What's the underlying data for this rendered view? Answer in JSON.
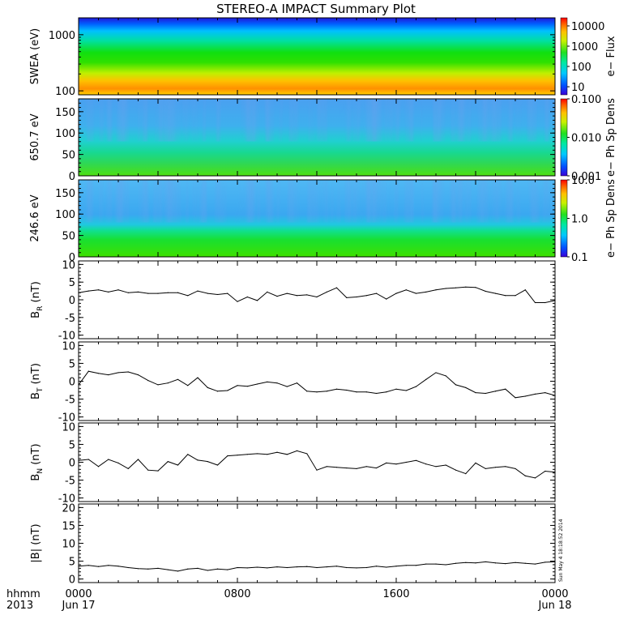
{
  "chart_data": {
    "type": "summary-plot",
    "title": "STEREO-A IMPACT Summary Plot",
    "x_axis": {
      "ticks": [
        "0000",
        "0800",
        "1600",
        "0000"
      ],
      "date_labels": [
        "Jun 17",
        "",
        "",
        "Jun 18"
      ],
      "unit_label": "hhmm",
      "year_label": "2013",
      "range_hours": [
        0,
        24
      ]
    },
    "timestamp": "Sun May  4 18:18:52 2014",
    "panels": [
      {
        "id": "swea",
        "type": "heatmap",
        "ylabel": "SWEA (eV)",
        "ylim": [
          85,
          2000
        ],
        "y_scale": "log",
        "y_ticks": [
          "100",
          "1000"
        ],
        "y_tick_values": [
          100,
          1000
        ],
        "colorbar": {
          "label": "e− Flux",
          "scale": "log",
          "ticks": [
            "10",
            "100",
            "1000",
            "10000"
          ],
          "tick_values": [
            10,
            100,
            1000,
            10000
          ],
          "range": [
            4,
            25000
          ]
        }
      },
      {
        "id": "pad650",
        "type": "heatmap",
        "ylabel": "650.7 eV",
        "ylim": [
          0,
          180
        ],
        "y_ticks": [
          "0",
          "50",
          "100",
          "150"
        ],
        "y_tick_values": [
          0,
          50,
          100,
          150
        ],
        "colorbar": {
          "label": "e− Ph Sp Dens",
          "scale": "log",
          "ticks": [
            "0.001",
            "0.010",
            "0.100"
          ],
          "tick_values": [
            0.001,
            0.01,
            0.1
          ],
          "range": [
            0.001,
            0.1
          ]
        }
      },
      {
        "id": "pad246",
        "type": "heatmap",
        "ylabel": "246.6 eV",
        "ylim": [
          0,
          180
        ],
        "y_ticks": [
          "0",
          "50",
          "100",
          "150"
        ],
        "y_tick_values": [
          0,
          50,
          100,
          150
        ],
        "colorbar": {
          "label": "e− Ph Sp Dens",
          "scale": "log",
          "ticks": [
            "0.1",
            "1.0",
            "10.0"
          ],
          "tick_values": [
            0.1,
            1.0,
            10.0
          ],
          "range": [
            0.1,
            10
          ]
        }
      },
      {
        "id": "br",
        "type": "line",
        "ylabel_main": "B",
        "ylabel_sub": "R",
        "ylabel_unit": " (nT)",
        "ylim": [
          -11,
          11
        ],
        "y_ticks": [
          "-10",
          "-5",
          "0",
          "5",
          "10"
        ],
        "y_tick_values": [
          -10,
          -5,
          0,
          5,
          10
        ],
        "x_hours": [
          0,
          0.5,
          1,
          1.5,
          2,
          2.5,
          3,
          3.5,
          4,
          4.5,
          5,
          5.5,
          6,
          6.5,
          7,
          7.5,
          8,
          8.5,
          9,
          9.5,
          10,
          10.5,
          11,
          11.5,
          12,
          12.5,
          13,
          13.5,
          14,
          14.5,
          15,
          15.5,
          16,
          16.5,
          17,
          17.5,
          18,
          18.5,
          19,
          19.5,
          20,
          20.5,
          21,
          21.5,
          22,
          22.5,
          23,
          23.5,
          24
        ],
        "values": [
          2,
          2.5,
          2.8,
          2.2,
          2.8,
          2,
          2.2,
          1.8,
          1.8,
          2,
          2,
          1.2,
          2.5,
          1.8,
          1.5,
          1.8,
          -0.5,
          0.8,
          -0.2,
          2.2,
          1,
          1.8,
          1.2,
          1.4,
          0.8,
          2.2,
          3.4,
          0.6,
          0.8,
          1.2,
          1.8,
          0.2,
          1.8,
          2.8,
          1.8,
          2.2,
          2.8,
          3.2,
          3.4,
          3.6,
          3.5,
          2.4,
          1.8,
          1.2,
          1.2,
          2.8,
          -0.8,
          -0.8,
          -0.2
        ]
      },
      {
        "id": "bt",
        "type": "line",
        "ylabel_main": "B",
        "ylabel_sub": "T",
        "ylabel_unit": " (nT)",
        "ylim": [
          -11,
          11
        ],
        "y_ticks": [
          "-10",
          "-5",
          "0",
          "5",
          "10"
        ],
        "y_tick_values": [
          -10,
          -5,
          0,
          5,
          10
        ],
        "x_hours": [
          0,
          0.5,
          1,
          1.5,
          2,
          2.5,
          3,
          3.5,
          4,
          4.5,
          5,
          5.5,
          6,
          6.5,
          7,
          7.5,
          8,
          8.5,
          9,
          9.5,
          10,
          10.5,
          11,
          11.5,
          12,
          12.5,
          13,
          13.5,
          14,
          14.5,
          15,
          15.5,
          16,
          16.5,
          17,
          17.5,
          18,
          18.5,
          19,
          19.5,
          20,
          20.5,
          21,
          21.5,
          22,
          22.5,
          23,
          23.5,
          24
        ],
        "values": [
          -1,
          2.8,
          2.2,
          1.8,
          2.4,
          2.6,
          1.8,
          0.2,
          -1,
          -0.5,
          0.5,
          -1.2,
          1,
          -1.8,
          -2.8,
          -2.6,
          -1.2,
          -1.4,
          -0.8,
          -0.2,
          -0.5,
          -1.5,
          -0.5,
          -2.8,
          -3,
          -2.8,
          -2.2,
          -2.5,
          -3,
          -3,
          -3.4,
          -3,
          -2.2,
          -2.6,
          -1.5,
          0.5,
          2.4,
          1.5,
          -1,
          -1.8,
          -3.2,
          -3.4,
          -2.8,
          -2.2,
          -4.6,
          -4.2,
          -3.6,
          -3.2,
          -4
        ]
      },
      {
        "id": "bn",
        "type": "line",
        "ylabel_main": "B",
        "ylabel_sub": "N",
        "ylabel_unit": " (nT)",
        "ylim": [
          -11,
          11
        ],
        "y_ticks": [
          "-10",
          "-5",
          "0",
          "5",
          "10"
        ],
        "y_tick_values": [
          -10,
          -5,
          0,
          5,
          10
        ],
        "x_hours": [
          0,
          0.5,
          1,
          1.5,
          2,
          2.5,
          3,
          3.5,
          4,
          4.5,
          5,
          5.5,
          6,
          6.5,
          7,
          7.5,
          8,
          8.5,
          9,
          9.5,
          10,
          10.5,
          11,
          11.5,
          12,
          12.5,
          13,
          13.5,
          14,
          14.5,
          15,
          15.5,
          16,
          16.5,
          17,
          17.5,
          18,
          18.5,
          19,
          19.5,
          20,
          20.5,
          21,
          21.5,
          22,
          22.5,
          23,
          23.5,
          24
        ],
        "values": [
          0.5,
          0.8,
          -1.2,
          0.8,
          -0.2,
          -1.8,
          0.8,
          -2.2,
          -2.4,
          0.2,
          -0.8,
          2.2,
          0.6,
          0.2,
          -0.8,
          1.8,
          2,
          2.2,
          2.4,
          2.2,
          2.8,
          2.2,
          3.2,
          2.4,
          -2.2,
          -1.2,
          -1.4,
          -1.6,
          -1.8,
          -1.2,
          -1.6,
          -0.2,
          -0.5,
          0,
          0.5,
          -0.5,
          -1.2,
          -0.8,
          -2.2,
          -3.2,
          -0.2,
          -1.8,
          -1.4,
          -1.2,
          -1.8,
          -3.8,
          -4.4,
          -2.5,
          -2.8
        ]
      },
      {
        "id": "bmag",
        "type": "line",
        "ylabel_main": "|B|",
        "ylabel_sub": "",
        "ylabel_unit": " (nT)",
        "ylim": [
          -1,
          21
        ],
        "y_ticks": [
          "0",
          "5",
          "10",
          "15",
          "20"
        ],
        "y_tick_values": [
          0,
          5,
          10,
          15,
          20
        ],
        "x_hours": [
          0,
          0.5,
          1,
          1.5,
          2,
          2.5,
          3,
          3.5,
          4,
          4.5,
          5,
          5.5,
          6,
          6.5,
          7,
          7.5,
          8,
          8.5,
          9,
          9.5,
          10,
          10.5,
          11,
          11.5,
          12,
          12.5,
          13,
          13.5,
          14,
          14.5,
          15,
          15.5,
          16,
          16.5,
          17,
          17.5,
          18,
          18.5,
          19,
          19.5,
          20,
          20.5,
          21,
          21.5,
          22,
          22.5,
          23,
          23.5,
          24
        ],
        "values": [
          3.6,
          3.8,
          3.5,
          3.8,
          3.6,
          3.2,
          2.9,
          2.8,
          3,
          2.6,
          2.2,
          2.8,
          3,
          2.4,
          2.8,
          2.6,
          3.2,
          3.1,
          3.3,
          3.1,
          3.4,
          3.2,
          3.4,
          3.5,
          3.2,
          3.4,
          3.6,
          3.2,
          3.1,
          3.2,
          3.6,
          3.3,
          3.6,
          3.8,
          3.8,
          4.2,
          4.2,
          4,
          4.4,
          4.6,
          4.5,
          4.8,
          4.5,
          4.3,
          4.6,
          4.4,
          4.2,
          4.7,
          4.8
        ]
      }
    ]
  }
}
